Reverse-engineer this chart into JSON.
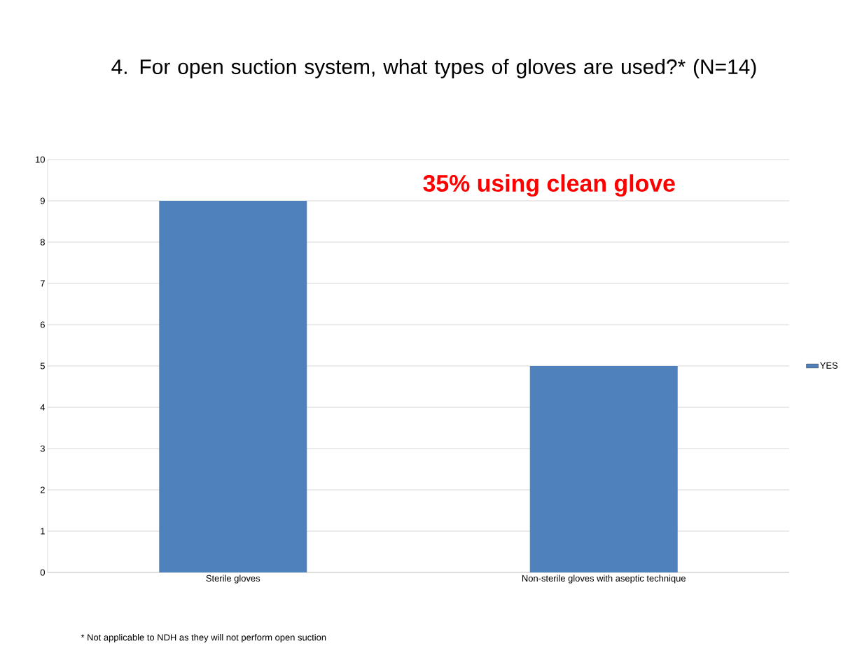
{
  "chart_data": {
    "type": "bar",
    "title": "4. For open suction system, what types of gloves are used?* (N=14)",
    "categories": [
      "Sterile gloves",
      "Non-sterile gloves with aseptic technique"
    ],
    "series": [
      {
        "name": "YES",
        "color": "#4f81bd",
        "values": [
          9,
          5
        ]
      }
    ],
    "ylim": [
      0,
      10
    ],
    "yticks": [
      0,
      1,
      2,
      3,
      4,
      5,
      6,
      7,
      8,
      9,
      10
    ],
    "grid": "y",
    "legend": "right",
    "annotations": [
      "35% using clean glove",
      "* Not applicable to NDH as they will not perform open suction"
    ]
  }
}
